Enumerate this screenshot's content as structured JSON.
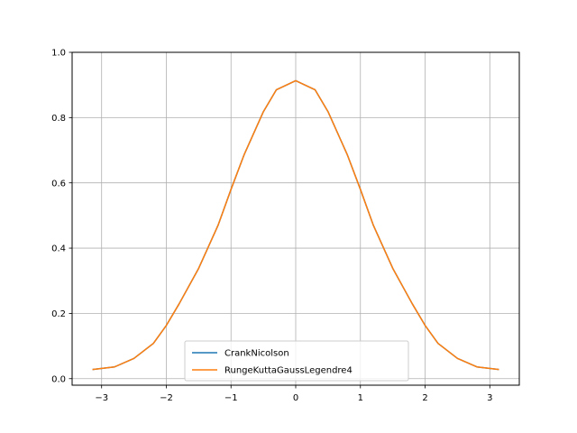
{
  "chart_data": {
    "type": "line",
    "title": "",
    "xlabel": "",
    "ylabel": "",
    "xlim": [
      -3.4558,
      3.4558
    ],
    "ylim": [
      -0.02,
      1.0
    ],
    "xticks": [
      -3,
      -2,
      -1,
      0,
      1,
      2,
      3
    ],
    "xtick_labels": [
      "−3",
      "−2",
      "−1",
      "0",
      "1",
      "2",
      "3"
    ],
    "yticks": [
      0.0,
      0.2,
      0.4,
      0.6,
      0.8,
      1.0
    ],
    "ytick_labels": [
      "0.0",
      "0.2",
      "0.4",
      "0.6",
      "0.8",
      "1.0"
    ],
    "grid": true,
    "legend_position": "lower-center",
    "x": [
      -3.1416,
      -2.8,
      -2.5,
      -2.2,
      -2.0,
      -1.8,
      -1.5,
      -1.2,
      -1.0,
      -0.8,
      -0.5,
      -0.3,
      0.0,
      0.3,
      0.5,
      0.8,
      1.0,
      1.2,
      1.5,
      1.8,
      2.0,
      2.2,
      2.5,
      2.8,
      3.1416
    ],
    "series": [
      {
        "name": "CrankNicolson",
        "color": "#1f77b4",
        "values": [
          0.028,
          0.036,
          0.062,
          0.108,
          0.163,
          0.23,
          0.338,
          0.47,
          0.58,
          0.685,
          0.818,
          0.885,
          0.913,
          0.885,
          0.818,
          0.685,
          0.58,
          0.47,
          0.338,
          0.23,
          0.163,
          0.108,
          0.062,
          0.036,
          0.028
        ]
      },
      {
        "name": "RungeKuttaGaussLegendre4",
        "color": "#ff7f0e",
        "values": [
          0.028,
          0.036,
          0.062,
          0.108,
          0.163,
          0.23,
          0.338,
          0.47,
          0.58,
          0.685,
          0.818,
          0.885,
          0.913,
          0.885,
          0.818,
          0.685,
          0.58,
          0.47,
          0.338,
          0.23,
          0.163,
          0.108,
          0.062,
          0.036,
          0.028
        ]
      }
    ]
  }
}
